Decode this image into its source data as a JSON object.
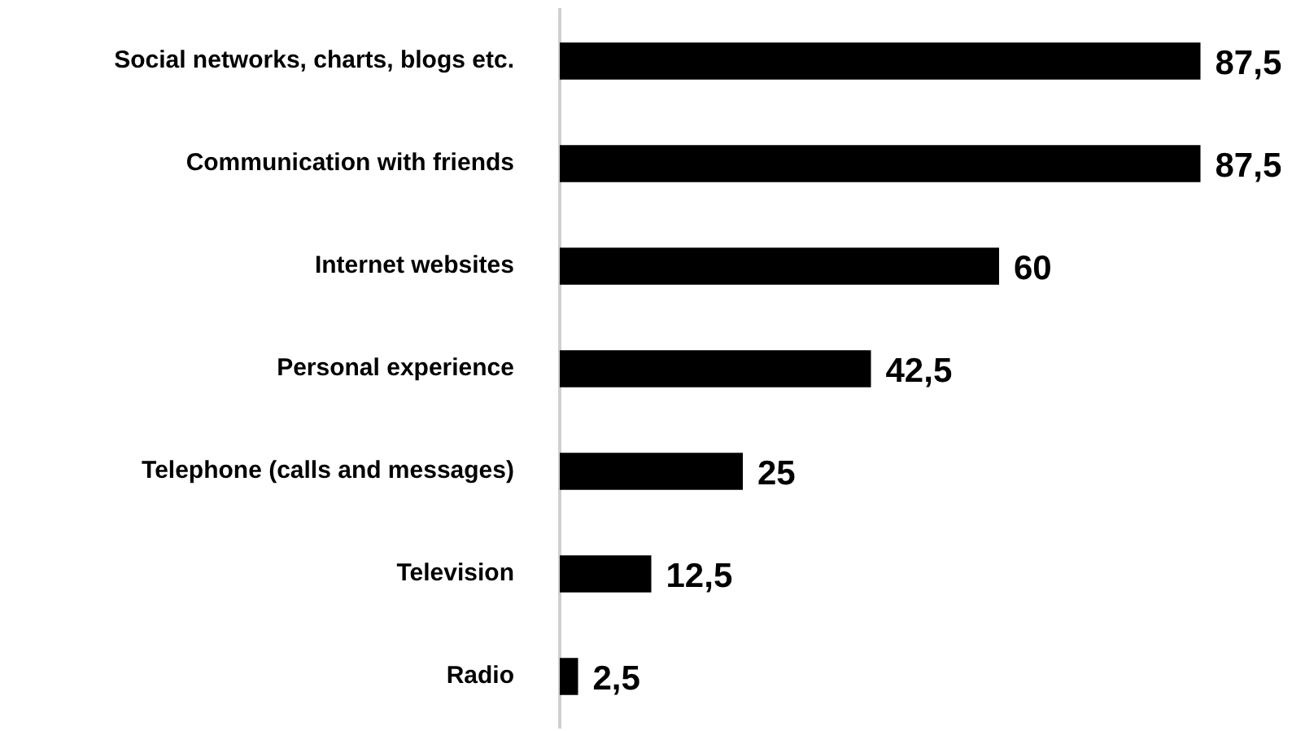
{
  "chart_data": {
    "type": "bar",
    "orientation": "horizontal",
    "categories": [
      "Social networks, charts, blogs etc.",
      "Communication with friends",
      "Internet websites",
      "Personal experience",
      "Telephone (calls and messages)",
      "Television",
      "Radio"
    ],
    "values": [
      87.5,
      87.5,
      60,
      42.5,
      25,
      12.5,
      2.5
    ],
    "value_labels": [
      "87,5",
      "87,5",
      "60",
      "42,5",
      "25",
      "12,5",
      "2,5"
    ],
    "color": "#000000"
  }
}
